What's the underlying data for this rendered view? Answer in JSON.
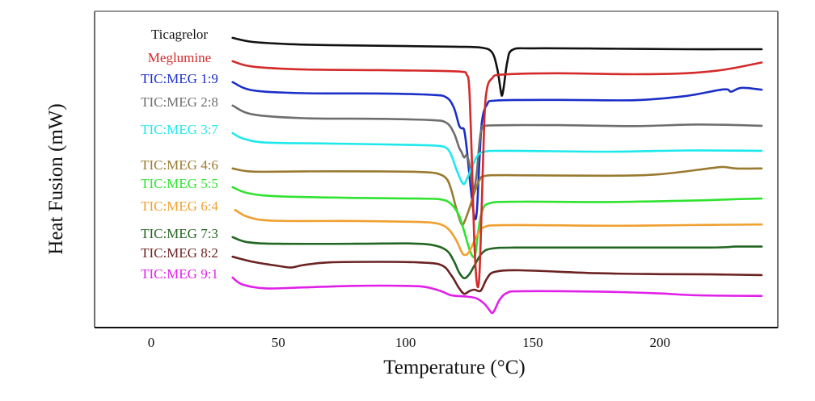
{
  "chart_data": {
    "type": "line",
    "title": "",
    "xlabel": "Temperature (°C)",
    "ylabel": "Heat Fusion (mW)",
    "x_ticks": [
      0,
      50,
      100,
      150,
      200
    ],
    "xlim": [
      -22,
      246
    ],
    "ylim": [
      0,
      100
    ],
    "y_units_note": "stacked thermograms, arbitrary offset units (no y tick labels shown)",
    "grid": false,
    "legend_placement": "left-inline",
    "series": [
      {
        "name": "Ticagrelor",
        "color": "#111111",
        "points": [
          [
            32,
            91.6
          ],
          [
            40,
            90.3
          ],
          [
            55,
            89.6
          ],
          [
            70,
            89.3
          ],
          [
            100,
            89.0
          ],
          [
            120,
            88.8
          ],
          [
            130,
            88.5
          ],
          [
            134,
            87.0
          ],
          [
            136,
            82.0
          ],
          [
            137.5,
            74.5
          ],
          [
            138,
            73.5
          ],
          [
            138.6,
            76.0
          ],
          [
            140,
            84.0
          ],
          [
            142,
            87.8
          ],
          [
            150,
            88.3
          ],
          [
            180,
            88.2
          ],
          [
            210,
            88.0
          ],
          [
            225,
            88.0
          ],
          [
            240,
            88.0
          ]
        ]
      },
      {
        "name": "Meglumine",
        "color": "#d42a2a",
        "points": [
          [
            32,
            84.2
          ],
          [
            40,
            82.5
          ],
          [
            60,
            81.6
          ],
          [
            90,
            81.4
          ],
          [
            110,
            81.2
          ],
          [
            122,
            80.9
          ],
          [
            124,
            80.0
          ],
          [
            125,
            76.0
          ],
          [
            126,
            55.0
          ],
          [
            127,
            28.0
          ],
          [
            128,
            14.3
          ],
          [
            129,
            16.0
          ],
          [
            130,
            40.0
          ],
          [
            131,
            66.0
          ],
          [
            132,
            75.5
          ],
          [
            134,
            78.8
          ],
          [
            138,
            80.0
          ],
          [
            160,
            80.4
          ],
          [
            190,
            80.1
          ],
          [
            210,
            80.4
          ],
          [
            225,
            81.5
          ],
          [
            240,
            83.8
          ]
        ]
      },
      {
        "name": "TIC:MEG 1:9",
        "color": "#1a2ec8",
        "points": [
          [
            32,
            77.6
          ],
          [
            40,
            75.0
          ],
          [
            60,
            74.1
          ],
          [
            90,
            74.0
          ],
          [
            110,
            73.6
          ],
          [
            116,
            72.8
          ],
          [
            119,
            69.5
          ],
          [
            121,
            64.0
          ],
          [
            122,
            63.0
          ],
          [
            123,
            62.5
          ],
          [
            124,
            57.0
          ],
          [
            125.5,
            45.0
          ],
          [
            127,
            35.2
          ],
          [
            128,
            36.5
          ],
          [
            129,
            52.0
          ],
          [
            130,
            65.0
          ],
          [
            132,
            70.5
          ],
          [
            136,
            71.8
          ],
          [
            160,
            72.0
          ],
          [
            190,
            71.9
          ],
          [
            210,
            73.2
          ],
          [
            225,
            75.3
          ],
          [
            228,
            74.6
          ],
          [
            232,
            75.8
          ],
          [
            240,
            75.2
          ]
        ]
      },
      {
        "name": "TIC:MEG 2:8",
        "color": "#6e6e6e",
        "points": [
          [
            32,
            70.2
          ],
          [
            40,
            67.4
          ],
          [
            60,
            66.2
          ],
          [
            90,
            66.0
          ],
          [
            110,
            65.6
          ],
          [
            116,
            64.8
          ],
          [
            119,
            61.5
          ],
          [
            121,
            57.0
          ],
          [
            122,
            55.5
          ],
          [
            123,
            53.8
          ],
          [
            124,
            54.5
          ],
          [
            125,
            52.0
          ],
          [
            126,
            46.0
          ],
          [
            127,
            44.0
          ],
          [
            128,
            49.0
          ],
          [
            129,
            58.0
          ],
          [
            130,
            62.8
          ],
          [
            133,
            63.9
          ],
          [
            160,
            64.0
          ],
          [
            190,
            63.7
          ],
          [
            215,
            64.2
          ],
          [
            240,
            63.8
          ]
        ]
      },
      {
        "name": "TIC:MEG 3:7",
        "color": "#1fe8ec",
        "points": [
          [
            32,
            61.5
          ],
          [
            36,
            59.8
          ],
          [
            45,
            58.5
          ],
          [
            70,
            58.2
          ],
          [
            100,
            57.8
          ],
          [
            112,
            57.5
          ],
          [
            116,
            56.8
          ],
          [
            118,
            54.5
          ],
          [
            120,
            50.0
          ],
          [
            122,
            46.2
          ],
          [
            123,
            45.4
          ],
          [
            124,
            46.8
          ],
          [
            126,
            50.5
          ],
          [
            128,
            54.0
          ],
          [
            131,
            55.6
          ],
          [
            140,
            55.9
          ],
          [
            180,
            55.6
          ],
          [
            210,
            56.0
          ],
          [
            240,
            55.9
          ]
        ]
      },
      {
        "name": "TIC:MEG 4:6",
        "color": "#9a7a30",
        "points": [
          [
            32,
            50.3
          ],
          [
            40,
            49.3
          ],
          [
            60,
            49.4
          ],
          [
            90,
            49.4
          ],
          [
            105,
            49.2
          ],
          [
            112,
            48.8
          ],
          [
            116,
            47.2
          ],
          [
            118,
            43.5
          ],
          [
            120,
            37.5
          ],
          [
            122,
            32.7
          ],
          [
            123,
            33.2
          ],
          [
            125,
            37.5
          ],
          [
            127,
            42.5
          ],
          [
            129,
            46.5
          ],
          [
            131,
            47.9
          ],
          [
            140,
            48.2
          ],
          [
            180,
            48.0
          ],
          [
            200,
            48.5
          ],
          [
            220,
            50.4
          ],
          [
            225,
            50.8
          ],
          [
            230,
            50.3
          ],
          [
            240,
            50.3
          ]
        ]
      },
      {
        "name": "TIC:MEG 5:5",
        "color": "#2fe32f",
        "points": [
          [
            32,
            44.4
          ],
          [
            38,
            42.5
          ],
          [
            50,
            41.5
          ],
          [
            80,
            41.0
          ],
          [
            105,
            40.8
          ],
          [
            114,
            40.5
          ],
          [
            118,
            39.0
          ],
          [
            121,
            35.5
          ],
          [
            123,
            30.5
          ],
          [
            125,
            25.0
          ],
          [
            126.5,
            22.4
          ],
          [
            127.5,
            23.5
          ],
          [
            128.5,
            30.0
          ],
          [
            130,
            36.5
          ],
          [
            133,
            39.3
          ],
          [
            145,
            39.8
          ],
          [
            180,
            39.7
          ],
          [
            215,
            40.2
          ],
          [
            230,
            40.6
          ],
          [
            240,
            40.8
          ]
        ]
      },
      {
        "name": "TIC:MEG 6:4",
        "color": "#f0a030",
        "points": [
          [
            33,
            37.2
          ],
          [
            38,
            35.0
          ],
          [
            48,
            33.8
          ],
          [
            80,
            33.7
          ],
          [
            105,
            33.4
          ],
          [
            113,
            32.8
          ],
          [
            117,
            31.0
          ],
          [
            120,
            27.5
          ],
          [
            122,
            24.0
          ],
          [
            123,
            23.0
          ],
          [
            124.5,
            23.4
          ],
          [
            126,
            25.5
          ],
          [
            128,
            29.0
          ],
          [
            131,
            31.8
          ],
          [
            140,
            32.4
          ],
          [
            180,
            32.2
          ],
          [
            210,
            32.4
          ],
          [
            240,
            32.6
          ]
        ]
      },
      {
        "name": "TIC:MEG 7:3",
        "color": "#226622",
        "points": [
          [
            32,
            28.6
          ],
          [
            38,
            27.0
          ],
          [
            50,
            26.5
          ],
          [
            80,
            26.5
          ],
          [
            100,
            26.6
          ],
          [
            110,
            26.2
          ],
          [
            116,
            24.5
          ],
          [
            119,
            21.0
          ],
          [
            121,
            17.5
          ],
          [
            123,
            15.6
          ],
          [
            125,
            16.8
          ],
          [
            127,
            19.5
          ],
          [
            130,
            23.5
          ],
          [
            134,
            25.0
          ],
          [
            145,
            25.3
          ],
          [
            180,
            25.3
          ],
          [
            220,
            25.3
          ],
          [
            230,
            25.6
          ],
          [
            240,
            25.6
          ]
        ]
      },
      {
        "name": "TIC:MEG 8:2",
        "color": "#6b2222",
        "points": [
          [
            32,
            22.4
          ],
          [
            40,
            20.8
          ],
          [
            50,
            19.5
          ],
          [
            55,
            19.0
          ],
          [
            60,
            19.8
          ],
          [
            70,
            20.6
          ],
          [
            90,
            20.8
          ],
          [
            105,
            20.6
          ],
          [
            114,
            19.8
          ],
          [
            118,
            16.5
          ],
          [
            121,
            12.5
          ],
          [
            123,
            10.7
          ],
          [
            125,
            11.5
          ],
          [
            127,
            12.0
          ],
          [
            129,
            11.5
          ],
          [
            130,
            12.2
          ],
          [
            132,
            15.5
          ],
          [
            135,
            17.6
          ],
          [
            145,
            18.1
          ],
          [
            175,
            17.2
          ],
          [
            200,
            16.9
          ],
          [
            220,
            16.8
          ],
          [
            240,
            16.6
          ]
        ]
      },
      {
        "name": "TIC:MEG 9:1",
        "color": "#e020e8",
        "points": [
          [
            32,
            15.8
          ],
          [
            36,
            13.6
          ],
          [
            45,
            12.4
          ],
          [
            60,
            12.7
          ],
          [
            80,
            13.2
          ],
          [
            100,
            13.2
          ],
          [
            108,
            12.8
          ],
          [
            114,
            11.5
          ],
          [
            118,
            10.2
          ],
          [
            124,
            9.8
          ],
          [
            128,
            9.2
          ],
          [
            131,
            7.5
          ],
          [
            133,
            5.5
          ],
          [
            134,
            4.6
          ],
          [
            135,
            5.5
          ],
          [
            137,
            8.8
          ],
          [
            140,
            11.0
          ],
          [
            146,
            11.5
          ],
          [
            180,
            11.3
          ],
          [
            200,
            10.8
          ],
          [
            215,
            10.2
          ],
          [
            240,
            10.0
          ]
        ]
      }
    ]
  }
}
